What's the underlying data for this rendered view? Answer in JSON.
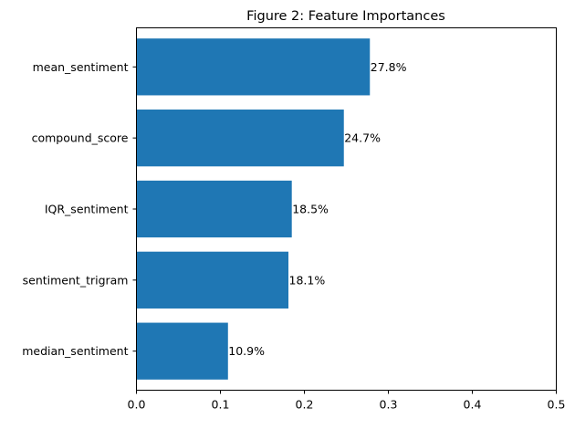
{
  "chart_data": {
    "type": "bar",
    "orientation": "horizontal",
    "title": "Figure 2: Feature Importances",
    "xlabel": "",
    "ylabel": "",
    "categories": [
      "mean_sentiment",
      "compound_score",
      "IQR_sentiment",
      "sentiment_trigram",
      "median_sentiment"
    ],
    "values": [
      0.278,
      0.247,
      0.185,
      0.181,
      0.109
    ],
    "data_labels": [
      "27.8%",
      "24.7%",
      "18.5%",
      "18.1%",
      "10.9%"
    ],
    "xlim": [
      0,
      0.5
    ],
    "xticks": [
      0.0,
      0.1,
      0.2,
      0.3,
      0.4,
      0.5
    ],
    "xtick_labels": [
      "0.0",
      "0.1",
      "0.2",
      "0.3",
      "0.4",
      "0.5"
    ],
    "grid": false,
    "legend": "none",
    "bar_color": "#1f77b4"
  }
}
